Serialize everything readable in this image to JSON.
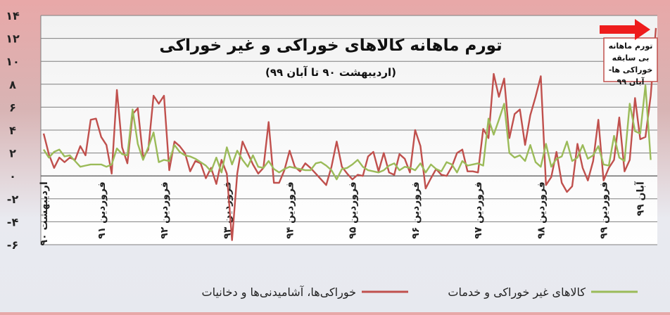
{
  "chart_data": {
    "type": "line",
    "title": "تورم ماهانه کالاهای خوراکی و غیر خوراکی",
    "subtitle": "(اردیبهشت ۹۰ تا آبان ۹۹)",
    "annotation": "تورم ماهانه بی سابقه خوراکی ها- آبان ۹۹",
    "ylim": [
      -6,
      14
    ],
    "y_ticks": [
      -6,
      -4,
      -2,
      0,
      2,
      4,
      6,
      8,
      10,
      12,
      14
    ],
    "y_tick_labels": [
      "-۶",
      "-۴",
      "-۲",
      "۰",
      "۲",
      "۴",
      "۶",
      "۸",
      "۱۰",
      "۱۲",
      "۱۴"
    ],
    "grid": true,
    "legend_position": "bottom",
    "x_tick_labels": [
      {
        "label": "اردیبهشت ۹۰",
        "index": 0
      },
      {
        "label": "فروردین ۹۱",
        "index": 11
      },
      {
        "label": "فروردین ۹۲",
        "index": 23
      },
      {
        "label": "فروردین ۹۳",
        "index": 35
      },
      {
        "label": "فروردین ۹۴",
        "index": 47
      },
      {
        "label": "فروردین ۹۵",
        "index": 59
      },
      {
        "label": "فروردین ۹۶",
        "index": 71
      },
      {
        "label": "فروردین ۹۷",
        "index": 83
      },
      {
        "label": "فروردین ۹۸",
        "index": 95
      },
      {
        "label": "فروردین ۹۹",
        "index": 107
      },
      {
        "label": "آبان ۹۹",
        "index": 114
      }
    ],
    "series": [
      {
        "name": "خوراکی‌ها، آشامیدنی‌ها و دخانیات",
        "color": "#c0504d",
        "values": [
          3.7,
          1.9,
          0.7,
          1.6,
          1.2,
          1.6,
          1.4,
          2.6,
          1.8,
          4.9,
          5.0,
          3.4,
          2.7,
          0.2,
          7.5,
          2.5,
          1.1,
          5.4,
          5.9,
          1.6,
          2.3,
          7.0,
          6.3,
          7.0,
          0.5,
          3.0,
          2.6,
          2.0,
          0.4,
          1.3,
          1.1,
          -0.2,
          0.7,
          -0.7,
          1.4,
          0.2,
          -5.6,
          0.2,
          3.0,
          2.0,
          1.0,
          0.2,
          0.7,
          4.7,
          -0.6,
          -0.6,
          0.5,
          2.2,
          0.8,
          0.4,
          1.1,
          0.7,
          0.2,
          -0.3,
          -0.8,
          0.8,
          3.0,
          0.8,
          0.2,
          -0.3,
          0.1,
          0.0,
          1.7,
          2.1,
          0.4,
          2.0,
          0.3,
          0.1,
          1.9,
          1.5,
          0.3,
          4.0,
          2.6,
          -1.1,
          -0.2,
          0.6,
          0.1,
          0.0,
          0.8,
          2.0,
          2.3,
          0.4,
          0.4,
          0.3,
          4.1,
          3.3,
          8.9,
          6.9,
          8.5,
          3.3,
          5.4,
          5.8,
          2.7,
          5.3,
          6.9,
          8.7,
          -0.8,
          -0.1,
          2.1,
          -0.6,
          -1.4,
          -0.9,
          2.8,
          0.7,
          -0.4,
          1.3,
          4.9,
          -0.4,
          0.7,
          1.4,
          5.1,
          0.4,
          1.4,
          6.8,
          3.2,
          3.4,
          7.0,
          12.9
        ]
      },
      {
        "name": "کالاهای غیر خوراکی و خدمات",
        "color": "#9bbb59",
        "values": [
          2.3,
          1.6,
          2.1,
          2.3,
          1.7,
          1.8,
          1.3,
          0.8,
          0.9,
          1.0,
          1.0,
          1.0,
          0.8,
          1.0,
          2.4,
          1.9,
          1.8,
          5.8,
          2.8,
          1.4,
          2.5,
          3.8,
          1.2,
          1.4,
          1.3,
          2.7,
          2.1,
          1.8,
          1.7,
          1.5,
          1.2,
          0.9,
          0.4,
          1.6,
          0.3,
          2.5,
          1.0,
          2.2,
          1.4,
          0.8,
          1.8,
          0.8,
          0.7,
          1.3,
          0.6,
          0.3,
          0.6,
          0.8,
          0.7,
          0.6,
          0.5,
          0.5,
          1.1,
          1.2,
          0.9,
          0.5,
          -0.3,
          0.6,
          0.7,
          1.0,
          1.4,
          0.8,
          0.5,
          0.4,
          0.3,
          0.5,
          0.9,
          1.1,
          0.5,
          0.8,
          0.7,
          0.5,
          1.1,
          0.3,
          1.0,
          0.6,
          0.4,
          1.2,
          1.0,
          0.3,
          1.3,
          0.9,
          1.0,
          1.1,
          0.9,
          5.0,
          3.6,
          4.9,
          6.3,
          2.0,
          1.6,
          1.8,
          1.3,
          2.7,
          1.2,
          0.8,
          2.8,
          0.8,
          1.5,
          1.7,
          3.0,
          1.3,
          1.6,
          2.7,
          1.5,
          1.8,
          2.6,
          1.0,
          0.9,
          3.5,
          1.6,
          1.3,
          6.3,
          3.9,
          3.7,
          7.9,
          1.4
        ]
      }
    ]
  }
}
